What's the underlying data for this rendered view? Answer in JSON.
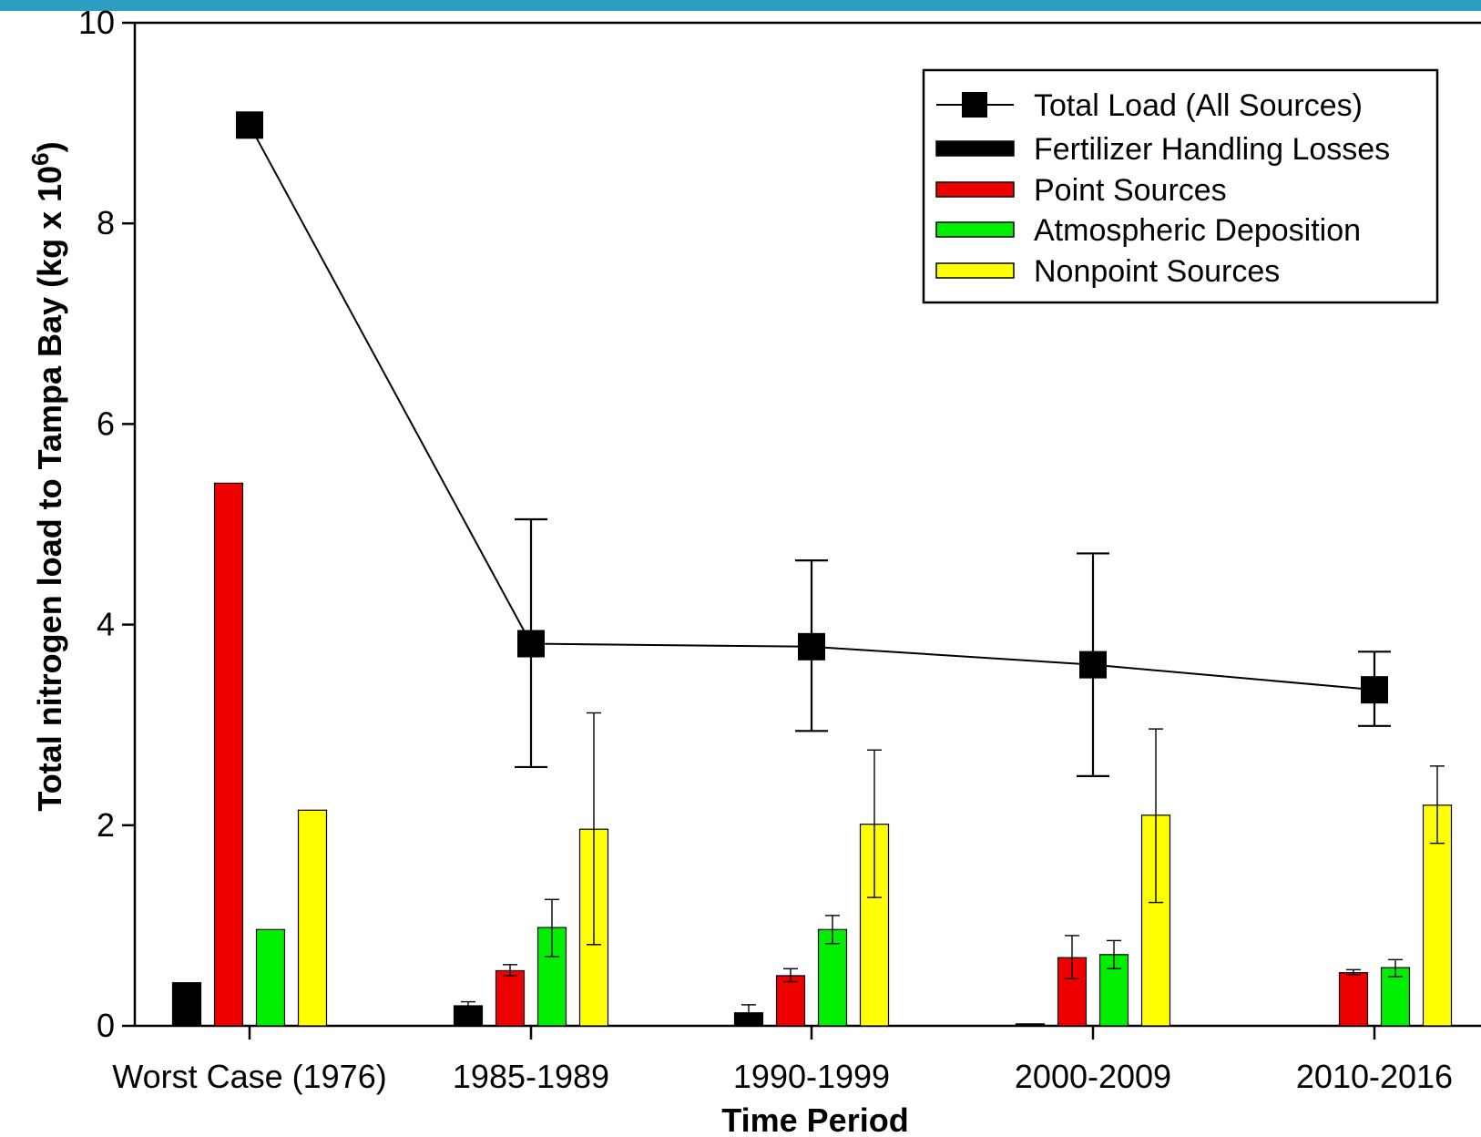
{
  "page": {
    "band_color": "#2e9dc2"
  },
  "chart_data": {
    "type": "bar",
    "title": "",
    "xlabel": "Time Period",
    "ylabel_main": "Total nitrogen load to Tampa Bay (kg x 10",
    "ylabel_sup": "6",
    "ylabel_close": ")",
    "ylim": [
      0,
      10
    ],
    "yticks": [
      0,
      2,
      4,
      6,
      8,
      10
    ],
    "grid": false,
    "legend_position": "top-right",
    "categories": [
      "Worst Case (1976)",
      "1985-1989",
      "1990-1999",
      "2000-2009",
      "2010-2016"
    ],
    "series": [
      {
        "name": "Fertilizer Handling Losses",
        "color": "#000000",
        "values": [
          0.43,
          0.2,
          0.13,
          0.02,
          null
        ],
        "err_low": [
          null,
          0.18,
          0.06,
          null,
          null
        ],
        "err_high": [
          null,
          0.24,
          0.21,
          null,
          null
        ]
      },
      {
        "name": "Point Sources",
        "color": "#ee0000",
        "values": [
          5.41,
          0.55,
          0.5,
          0.68,
          0.53
        ],
        "err_low": [
          null,
          0.5,
          0.44,
          0.47,
          0.51
        ],
        "err_high": [
          null,
          0.61,
          0.57,
          0.9,
          0.56
        ]
      },
      {
        "name": "Atmospheric Deposition",
        "color": "#00ee00",
        "values": [
          0.96,
          0.98,
          0.96,
          0.71,
          0.58
        ],
        "err_low": [
          null,
          0.69,
          0.82,
          0.57,
          0.49
        ],
        "err_high": [
          null,
          1.26,
          1.1,
          0.85,
          0.66
        ]
      },
      {
        "name": "Nonpoint Sources",
        "color": "#ffff00",
        "values": [
          2.15,
          1.96,
          2.01,
          2.1,
          2.2
        ],
        "err_low": [
          null,
          0.81,
          1.28,
          1.23,
          1.82
        ],
        "err_high": [
          null,
          3.12,
          2.75,
          2.96,
          2.59
        ]
      }
    ],
    "line_series": {
      "name": "Total Load (All Sources)",
      "color": "#000000",
      "values": [
        8.98,
        3.81,
        3.78,
        3.6,
        3.35
      ],
      "err_low": [
        null,
        2.58,
        2.94,
        2.49,
        2.99
      ],
      "err_high": [
        null,
        5.05,
        4.64,
        4.71,
        3.73
      ]
    }
  }
}
